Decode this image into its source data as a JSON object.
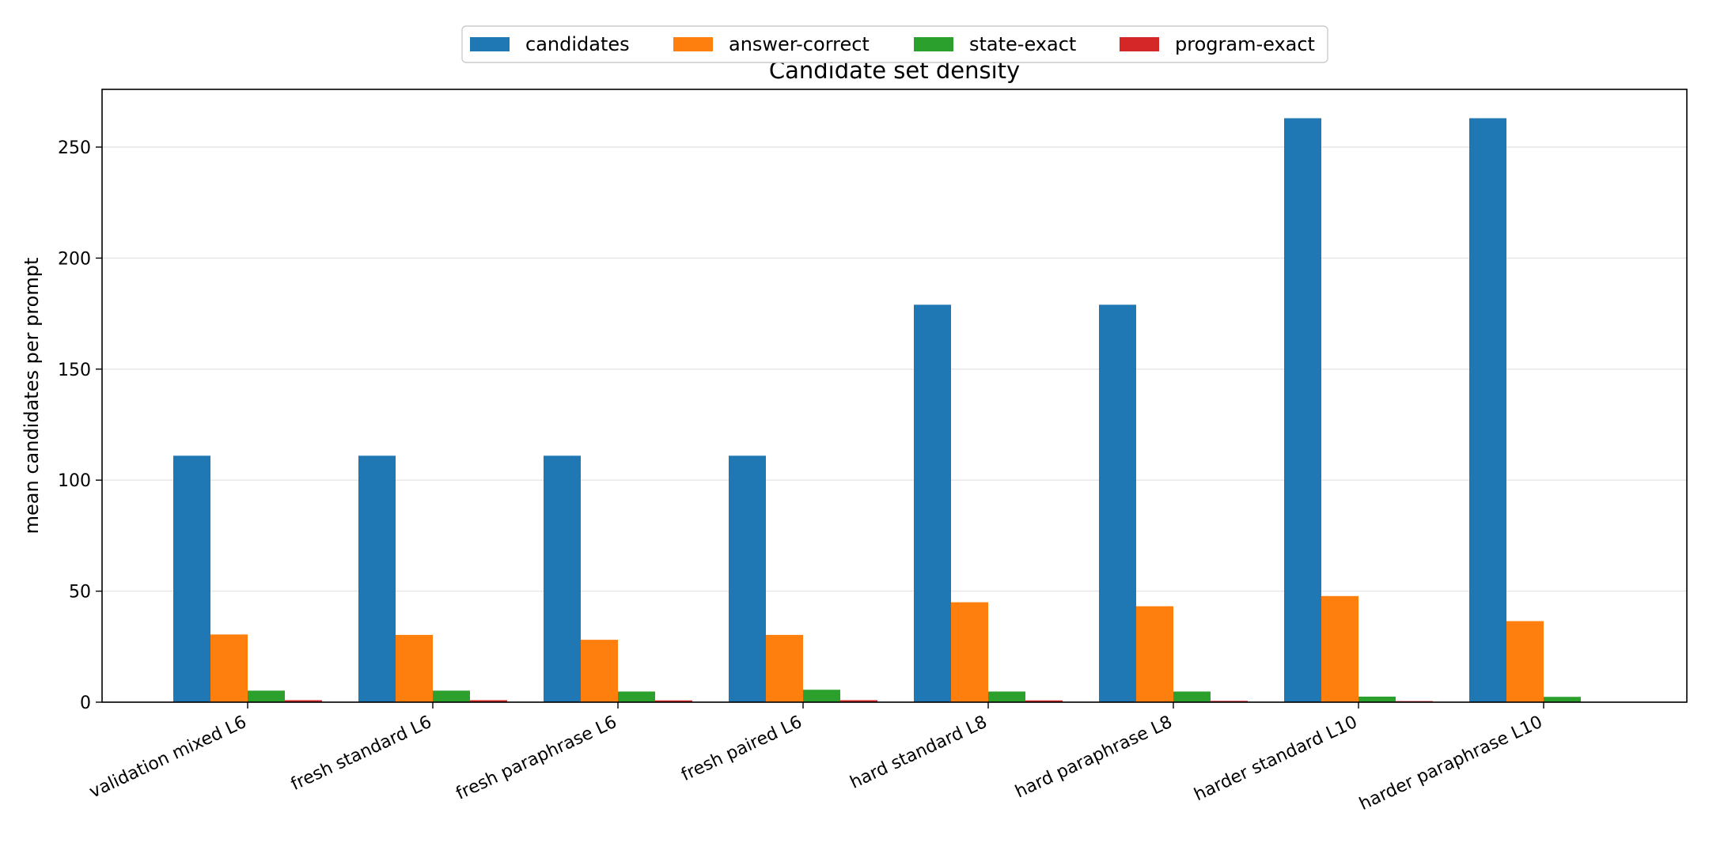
{
  "chart_data": {
    "type": "bar",
    "title": "Candidate set density",
    "xlabel": "",
    "ylabel": "mean candidates per prompt",
    "ylim": [
      0,
      276
    ],
    "yticks": [
      0,
      50,
      100,
      150,
      200,
      250
    ],
    "grid": "horizontal",
    "legend_position": "top-center",
    "categories": [
      "validation mixed L6",
      "fresh standard L6",
      "fresh paraphrase L6",
      "fresh paired L6",
      "hard standard L8",
      "hard paraphrase L8",
      "harder standard L10",
      "harder paraphrase L10"
    ],
    "series": [
      {
        "name": "candidates",
        "color": "#1f77b4",
        "values": [
          111,
          111,
          111,
          111,
          179,
          179,
          263,
          263
        ]
      },
      {
        "name": "answer-correct",
        "color": "#ff7f0e",
        "values": [
          30.5,
          30.3,
          28.1,
          30.3,
          45,
          43.2,
          47.8,
          36.5
        ]
      },
      {
        "name": "state-exact",
        "color": "#2ca02c",
        "values": [
          5.2,
          5.2,
          4.8,
          5.6,
          4.8,
          4.8,
          2.5,
          2.4
        ]
      },
      {
        "name": "program-exact",
        "color": "#d62728",
        "values": [
          0.9,
          0.9,
          0.8,
          0.9,
          0.8,
          0.6,
          0.5,
          0
        ]
      }
    ]
  }
}
